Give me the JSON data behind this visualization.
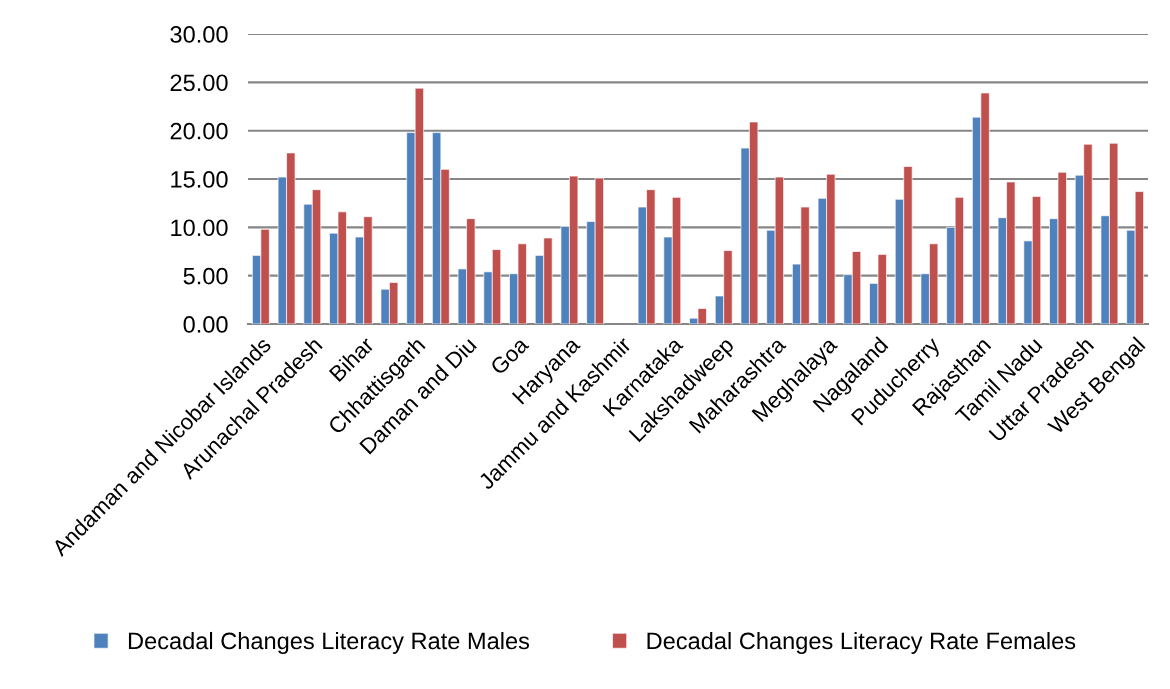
{
  "chart_data": {
    "type": "bar",
    "categories": [
      "Andaman and Nicobar Islands",
      null,
      "Arunachal Pradesh",
      null,
      "Bihar",
      null,
      "Chhattisgarh",
      null,
      "Daman and Diu",
      null,
      "Goa",
      null,
      "Haryana",
      null,
      "Jammu and Kashmir",
      null,
      "Karnataka",
      null,
      "Lakshadweep",
      null,
      "Maharashtra",
      null,
      "Meghalaya",
      null,
      "Nagaland",
      null,
      "Puducherry",
      null,
      "Rajasthan",
      null,
      "Tamil Nadu",
      null,
      "Uttar Pradesh",
      null,
      "West Bengal"
    ],
    "series": [
      {
        "name": "Decadal Changes Literacy Rate Males",
        "color": "#4f81bd",
        "values": [
          7.1,
          15.2,
          12.4,
          9.4,
          9.0,
          3.6,
          19.8,
          19.8,
          5.7,
          5.4,
          5.2,
          7.1,
          10.1,
          10.6,
          null,
          12.1,
          9.0,
          0.6,
          2.9,
          18.2,
          9.7,
          6.2,
          13.0,
          5.1,
          4.2,
          12.9,
          5.2,
          10.0,
          21.4,
          11.0,
          8.6,
          10.9,
          15.4,
          11.2,
          9.7
        ]
      },
      {
        "name": "Decadal Changes Literacy Rate Females",
        "color": "#c0504d",
        "values": [
          9.8,
          17.7,
          13.9,
          11.6,
          11.1,
          4.3,
          24.4,
          16.0,
          10.9,
          7.7,
          8.3,
          8.9,
          15.3,
          15.1,
          null,
          13.9,
          13.1,
          1.6,
          7.6,
          20.9,
          15.2,
          12.1,
          15.5,
          7.5,
          7.2,
          16.3,
          8.3,
          13.1,
          23.9,
          14.7,
          13.2,
          15.7,
          18.6,
          18.7,
          13.7
        ]
      }
    ],
    "ylim": [
      0,
      30
    ],
    "yticks": [
      {
        "value": 0,
        "label": "0.00"
      },
      {
        "value": 5,
        "label": "5.00"
      },
      {
        "value": 10,
        "label": "10.00"
      },
      {
        "value": 15,
        "label": "15.00"
      },
      {
        "value": 20,
        "label": "20.00"
      },
      {
        "value": 25,
        "label": "25.00"
      },
      {
        "value": 30,
        "label": "30.00"
      }
    ],
    "grid": "y",
    "legend": "bottom"
  }
}
